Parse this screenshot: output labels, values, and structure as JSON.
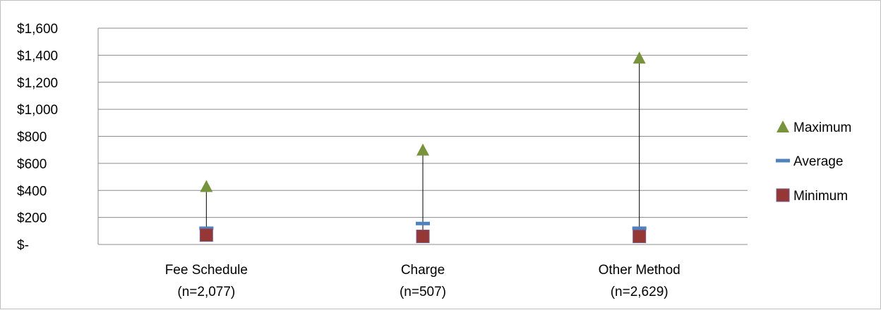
{
  "chart_data": {
    "type": "scatter",
    "categories": [
      "Fee Schedule",
      "Charge",
      "Other Method"
    ],
    "category_sublabels": [
      "(n=2,077)",
      "(n=507)",
      "(n=2,629)"
    ],
    "ylim": [
      0,
      1600
    ],
    "yticks": [
      0,
      200,
      400,
      600,
      800,
      1000,
      1200,
      1400,
      1600
    ],
    "ytick_labels": [
      "$-",
      "$200",
      "$400",
      "$600",
      "$800",
      "$1,000",
      "$1,200",
      "$1,400",
      "$1,600"
    ],
    "grid": true,
    "legend_position": "right",
    "series": [
      {
        "name": "Maximum",
        "marker": "triangle",
        "color": "#77933c",
        "values": [
          430,
          700,
          1380
        ]
      },
      {
        "name": "Average",
        "marker": "dash",
        "color": "#4f81bd",
        "values": [
          120,
          155,
          120
        ]
      },
      {
        "name": "Minimum",
        "marker": "square",
        "color": "#953735",
        "values": [
          70,
          60,
          60
        ]
      }
    ]
  }
}
